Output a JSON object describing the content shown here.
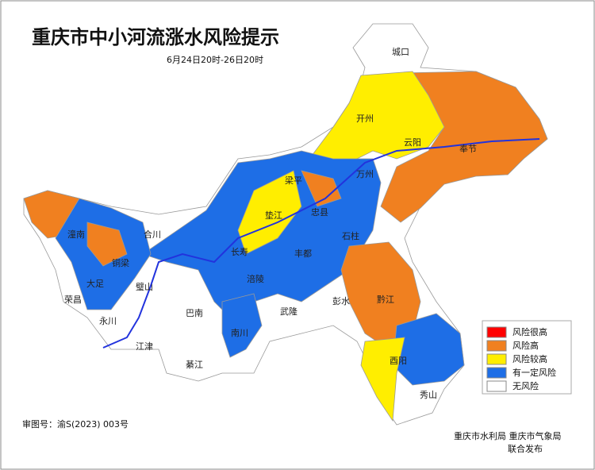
{
  "header": {
    "title": "重庆市中小河流涨水风险提示",
    "subtitle": "6月24日20时-26日20时"
  },
  "legend": [
    "风险很高",
    "风险高",
    "风险较高",
    "有一定风险",
    "无风险"
  ],
  "districts": [
    "城口",
    "开州",
    "云阳",
    "奉节",
    "万州",
    "梁平",
    "忠县",
    "垫江",
    "石柱",
    "潼南",
    "合川",
    "铜梁",
    "大足",
    "璧山",
    "荣昌",
    "永川",
    "江津",
    "綦江",
    "巴南",
    "南川",
    "涪陵",
    "长寿",
    "丰都",
    "武隆",
    "彭水",
    "黔江",
    "酉阳",
    "秀山"
  ],
  "footer": {
    "map_number": "审图号：渝S(2023) 003号",
    "issuers": "重庆市水利局  重庆市气象局",
    "release": "联合发布"
  }
}
